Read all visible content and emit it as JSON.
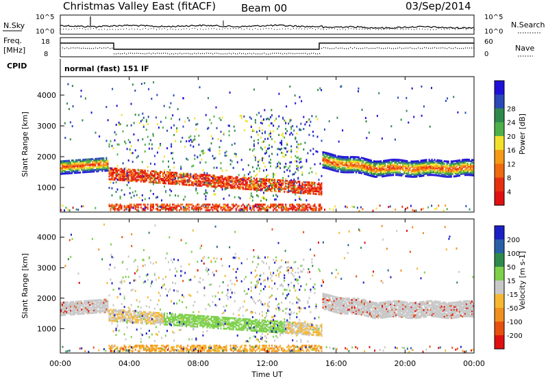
{
  "header": {
    "station": "Christmas Valley East (fitACF)",
    "beam": "Beam 00",
    "date": "03/Sep/2014"
  },
  "top_panels": {
    "nsky_label": "N.Sky",
    "nsky_ticks": [
      "10^5",
      "10^0"
    ],
    "nsearch_label": "N.Search",
    "nsearch_ticks": [
      "10^5",
      "10^0"
    ],
    "freq_label_line1": "Freq.",
    "freq_label_line2": "[MHz]",
    "freq_ticks": [
      "18",
      "8"
    ],
    "nave_label": "Nave",
    "nave_ticks": [
      "60",
      "0"
    ],
    "cpid_label": "CPID",
    "cpid_text": "normal (fast) 151 IF"
  },
  "chart_data": [
    {
      "type": "heatmap",
      "title": "",
      "ylabel": "Slant Range [km]",
      "xlabel": "Time UT",
      "x_ticks": [
        "00:00",
        "04:00",
        "08:00",
        "12:00",
        "16:00",
        "20:00",
        "00:00"
      ],
      "y_ticks": [
        1000,
        2000,
        3000,
        4000
      ],
      "ylim": [
        200,
        4600
      ],
      "colorbar_label": "Power [dB]",
      "colorbar_ticks": [
        4,
        8,
        12,
        16,
        20,
        24,
        28
      ],
      "colorbar_colors": [
        "#1f10d9",
        "#2a48b8",
        "#2e8a4c",
        "#4fb04a",
        "#f2e12a",
        "#f59a16",
        "#f06a10",
        "#e83010",
        "#e01010"
      ]
    },
    {
      "type": "heatmap",
      "title": "",
      "ylabel": "Slant Range [km]",
      "xlabel": "Time UT",
      "x_ticks": [
        "00:00",
        "04:00",
        "08:00",
        "12:00",
        "16:00",
        "20:00",
        "00:00"
      ],
      "y_ticks": [
        1000,
        2000,
        3000,
        4000
      ],
      "ylim": [
        200,
        4600
      ],
      "colorbar_label": "Velocity [m s-1]",
      "colorbar_ticks": [
        200,
        100,
        50,
        15,
        -15,
        -50,
        -100,
        -200
      ],
      "colorbar_colors": [
        "#1a20c8",
        "#2860a8",
        "#2e8a4c",
        "#7dd04a",
        "#c8c8c8",
        "#f5b830",
        "#f09020",
        "#e85010",
        "#e01010"
      ]
    }
  ],
  "x_axis_title": "Time UT"
}
